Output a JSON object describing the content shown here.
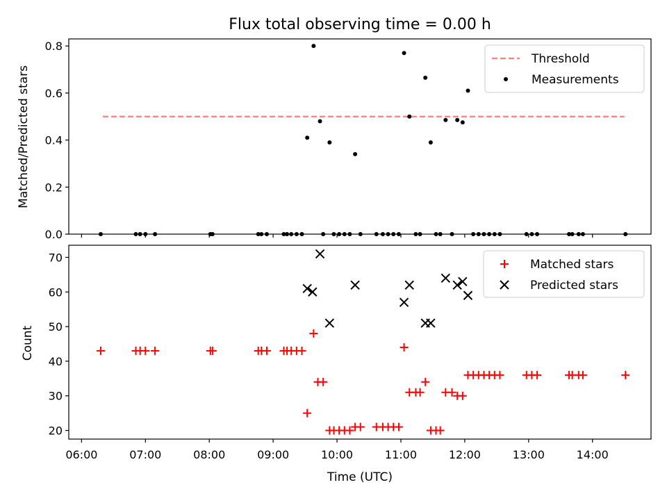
{
  "figure": {
    "title": "Flux total observing time = 0.00 h"
  },
  "chart_data": [
    {
      "type": "scatter",
      "panel": "top",
      "ylabel": "Matched/Predicted stars",
      "ylim": [
        0,
        0.83
      ],
      "yticks": [
        0.0,
        0.2,
        0.4,
        0.6,
        0.8
      ],
      "ytick_labels": [
        "0.0",
        "0.2",
        "0.4",
        "0.6",
        "0.8"
      ],
      "grid": false,
      "legend_position": "upper right",
      "legend": [
        {
          "label": "Threshold",
          "kind": "dashed-line",
          "color": "#ff7f7f"
        },
        {
          "label": "Measurements",
          "kind": "dot",
          "color": "#000000"
        }
      ],
      "threshold": {
        "y": 0.5,
        "x_start": "06:20",
        "x_end": "14:30",
        "color": "#ff7f7f"
      },
      "series": [
        {
          "name": "Measurements",
          "color": "#000000",
          "points": [
            {
              "x": "09:32",
              "y": 0.41
            },
            {
              "x": "09:38",
              "y": 0.8
            },
            {
              "x": "09:44",
              "y": 0.48
            },
            {
              "x": "09:53",
              "y": 0.39
            },
            {
              "x": "10:17",
              "y": 0.34
            },
            {
              "x": "11:03",
              "y": 0.77
            },
            {
              "x": "11:08",
              "y": 0.5
            },
            {
              "x": "11:23",
              "y": 0.665
            },
            {
              "x": "11:28",
              "y": 0.39
            },
            {
              "x": "11:42",
              "y": 0.485
            },
            {
              "x": "11:53",
              "y": 0.485
            },
            {
              "x": "11:58",
              "y": 0.475
            },
            {
              "x": "12:03",
              "y": 0.61
            },
            {
              "x": "06:18",
              "y": 0
            },
            {
              "x": "06:51",
              "y": 0
            },
            {
              "x": "06:55",
              "y": 0
            },
            {
              "x": "07:00",
              "y": 0
            },
            {
              "x": "07:09",
              "y": 0
            },
            {
              "x": "08:01",
              "y": 0
            },
            {
              "x": "08:03",
              "y": 0
            },
            {
              "x": "08:46",
              "y": 0
            },
            {
              "x": "08:49",
              "y": 0
            },
            {
              "x": "08:54",
              "y": 0
            },
            {
              "x": "09:10",
              "y": 0
            },
            {
              "x": "09:13",
              "y": 0
            },
            {
              "x": "09:17",
              "y": 0
            },
            {
              "x": "09:22",
              "y": 0
            },
            {
              "x": "09:27",
              "y": 0
            },
            {
              "x": "09:47",
              "y": 0
            },
            {
              "x": "09:57",
              "y": 0
            },
            {
              "x": "10:02",
              "y": 0
            },
            {
              "x": "10:07",
              "y": 0
            },
            {
              "x": "10:12",
              "y": 0
            },
            {
              "x": "10:22",
              "y": 0
            },
            {
              "x": "10:37",
              "y": 0
            },
            {
              "x": "10:43",
              "y": 0
            },
            {
              "x": "10:48",
              "y": 0
            },
            {
              "x": "10:53",
              "y": 0
            },
            {
              "x": "10:58",
              "y": 0
            },
            {
              "x": "11:14",
              "y": 0
            },
            {
              "x": "11:18",
              "y": 0
            },
            {
              "x": "11:33",
              "y": 0
            },
            {
              "x": "11:37",
              "y": 0
            },
            {
              "x": "11:48",
              "y": 0
            },
            {
              "x": "12:08",
              "y": 0
            },
            {
              "x": "12:13",
              "y": 0
            },
            {
              "x": "12:18",
              "y": 0
            },
            {
              "x": "12:23",
              "y": 0
            },
            {
              "x": "12:28",
              "y": 0
            },
            {
              "x": "12:33",
              "y": 0
            },
            {
              "x": "12:58",
              "y": 0
            },
            {
              "x": "13:03",
              "y": 0
            },
            {
              "x": "13:08",
              "y": 0
            },
            {
              "x": "13:38",
              "y": 0
            },
            {
              "x": "13:41",
              "y": 0
            },
            {
              "x": "13:47",
              "y": 0
            },
            {
              "x": "13:51",
              "y": 0
            },
            {
              "x": "14:31",
              "y": 0
            }
          ]
        }
      ]
    },
    {
      "type": "scatter",
      "panel": "bottom",
      "xlabel": "Time (UTC)",
      "ylabel": "Count",
      "xlim": [
        "05:48",
        "14:55"
      ],
      "xticks": [
        "06:00",
        "07:00",
        "08:00",
        "09:00",
        "10:00",
        "11:00",
        "12:00",
        "13:00",
        "14:00"
      ],
      "ylim": [
        17.5,
        73.5
      ],
      "yticks": [
        20,
        30,
        40,
        50,
        60,
        70
      ],
      "ytick_labels": [
        "20",
        "30",
        "40",
        "50",
        "60",
        "70"
      ],
      "grid": false,
      "legend_position": "upper right",
      "legend": [
        {
          "label": "Matched stars",
          "kind": "plus",
          "color": "#ff0000"
        },
        {
          "label": "Predicted stars",
          "kind": "x",
          "color": "#000000"
        }
      ],
      "series": [
        {
          "name": "Matched stars",
          "marker": "plus",
          "color": "#ff0000",
          "points": [
            {
              "x": "06:18",
              "y": 43
            },
            {
              "x": "06:51",
              "y": 43
            },
            {
              "x": "06:55",
              "y": 43
            },
            {
              "x": "07:00",
              "y": 43
            },
            {
              "x": "07:09",
              "y": 43
            },
            {
              "x": "08:01",
              "y": 43
            },
            {
              "x": "08:03",
              "y": 43
            },
            {
              "x": "08:46",
              "y": 43
            },
            {
              "x": "08:49",
              "y": 43
            },
            {
              "x": "08:54",
              "y": 43
            },
            {
              "x": "09:10",
              "y": 43
            },
            {
              "x": "09:13",
              "y": 43
            },
            {
              "x": "09:17",
              "y": 43
            },
            {
              "x": "09:22",
              "y": 43
            },
            {
              "x": "09:27",
              "y": 43
            },
            {
              "x": "09:32",
              "y": 25
            },
            {
              "x": "09:38",
              "y": 48
            },
            {
              "x": "09:42",
              "y": 34
            },
            {
              "x": "09:47",
              "y": 34
            },
            {
              "x": "09:53",
              "y": 20
            },
            {
              "x": "09:57",
              "y": 20
            },
            {
              "x": "10:02",
              "y": 20
            },
            {
              "x": "10:07",
              "y": 20
            },
            {
              "x": "10:12",
              "y": 20
            },
            {
              "x": "10:17",
              "y": 21
            },
            {
              "x": "10:22",
              "y": 21
            },
            {
              "x": "10:37",
              "y": 21
            },
            {
              "x": "10:43",
              "y": 21
            },
            {
              "x": "10:48",
              "y": 21
            },
            {
              "x": "10:53",
              "y": 21
            },
            {
              "x": "10:58",
              "y": 21
            },
            {
              "x": "11:03",
              "y": 44
            },
            {
              "x": "11:08",
              "y": 31
            },
            {
              "x": "11:14",
              "y": 31
            },
            {
              "x": "11:18",
              "y": 31
            },
            {
              "x": "11:23",
              "y": 34
            },
            {
              "x": "11:28",
              "y": 20
            },
            {
              "x": "11:33",
              "y": 20
            },
            {
              "x": "11:37",
              "y": 20
            },
            {
              "x": "11:42",
              "y": 31
            },
            {
              "x": "11:48",
              "y": 31
            },
            {
              "x": "11:53",
              "y": 30
            },
            {
              "x": "11:58",
              "y": 30
            },
            {
              "x": "12:03",
              "y": 36
            },
            {
              "x": "12:08",
              "y": 36
            },
            {
              "x": "12:13",
              "y": 36
            },
            {
              "x": "12:18",
              "y": 36
            },
            {
              "x": "12:23",
              "y": 36
            },
            {
              "x": "12:28",
              "y": 36
            },
            {
              "x": "12:33",
              "y": 36
            },
            {
              "x": "12:58",
              "y": 36
            },
            {
              "x": "13:03",
              "y": 36
            },
            {
              "x": "13:08",
              "y": 36
            },
            {
              "x": "13:38",
              "y": 36
            },
            {
              "x": "13:41",
              "y": 36
            },
            {
              "x": "13:47",
              "y": 36
            },
            {
              "x": "13:51",
              "y": 36
            },
            {
              "x": "14:31",
              "y": 36
            }
          ]
        },
        {
          "name": "Predicted stars",
          "marker": "x",
          "color": "#000000",
          "points": [
            {
              "x": "09:32",
              "y": 61
            },
            {
              "x": "09:37",
              "y": 60
            },
            {
              "x": "09:44",
              "y": 71
            },
            {
              "x": "09:53",
              "y": 51
            },
            {
              "x": "10:17",
              "y": 62
            },
            {
              "x": "11:03",
              "y": 57
            },
            {
              "x": "11:08",
              "y": 62
            },
            {
              "x": "11:23",
              "y": 51
            },
            {
              "x": "11:28",
              "y": 51
            },
            {
              "x": "11:42",
              "y": 64
            },
            {
              "x": "11:53",
              "y": 62
            },
            {
              "x": "11:58",
              "y": 63
            },
            {
              "x": "12:03",
              "y": 59
            }
          ]
        }
      ]
    }
  ]
}
